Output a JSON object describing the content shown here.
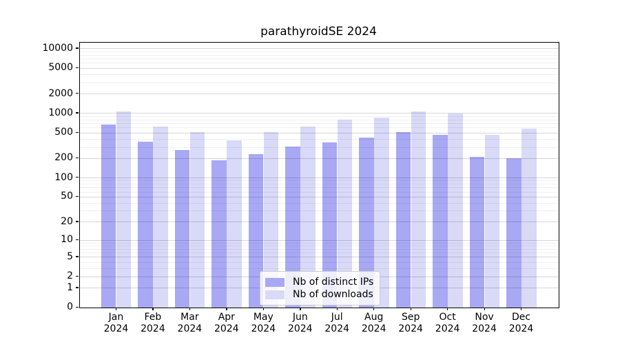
{
  "title": "parathyroidSE 2024",
  "legend": {
    "items": [
      {
        "label": "Nb of distinct IPs",
        "color": "#a8a8f5"
      },
      {
        "label": "Nb of downloads",
        "color": "#d9d9f8"
      }
    ]
  },
  "chart_data": {
    "type": "bar",
    "title": "parathyroidSE 2024",
    "categories": [
      "Jan 2024",
      "Feb 2024",
      "Mar 2024",
      "Apr 2024",
      "May 2024",
      "Jun 2024",
      "Jul 2024",
      "Aug 2024",
      "Sep 2024",
      "Oct 2024",
      "Nov 2024",
      "Dec 2024"
    ],
    "series": [
      {
        "name": "Nb of distinct IPs",
        "color": "#a8a8f5",
        "values": [
          670,
          365,
          270,
          190,
          232,
          310,
          355,
          428,
          520,
          465,
          212,
          202
        ]
      },
      {
        "name": "Nb of downloads",
        "color": "#d9d9f8",
        "values": [
          1085,
          630,
          510,
          385,
          515,
          630,
          805,
          860,
          1075,
          1000,
          465,
          580
        ]
      }
    ],
    "yscale": "log10(1+v)",
    "yticks": [
      10000,
      5000,
      2000,
      1000,
      500,
      200,
      100,
      50,
      20,
      10,
      5,
      2,
      1,
      0
    ],
    "minor_grid_values": [
      3,
      4,
      6,
      7,
      8,
      9,
      30,
      40,
      60,
      70,
      80,
      90,
      300,
      400,
      600,
      700,
      800,
      900,
      3000,
      4000,
      6000,
      7000,
      8000,
      9000
    ],
    "ylim": [
      0,
      12500
    ],
    "xlabel": "",
    "ylabel": "",
    "grid": true,
    "legend_position": "lower center"
  }
}
